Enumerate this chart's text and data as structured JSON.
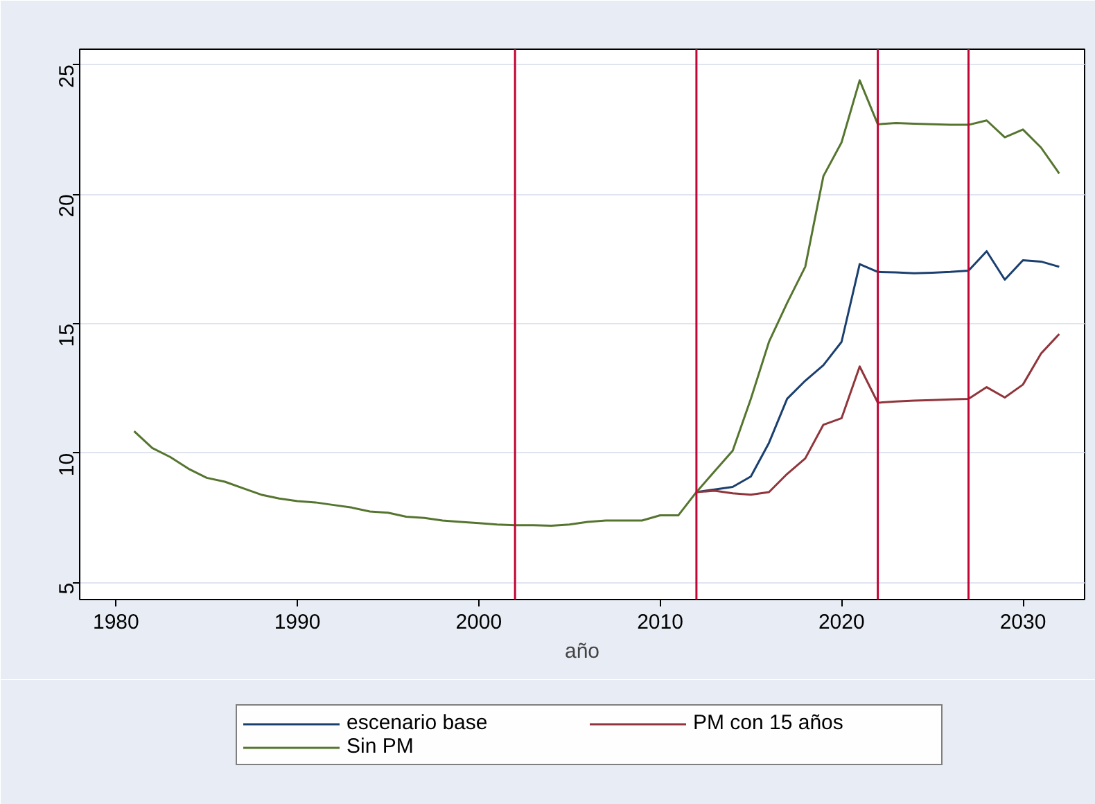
{
  "chart_data": {
    "type": "line",
    "xlabel": "año",
    "x": [
      1981,
      1982,
      1983,
      1984,
      1985,
      1986,
      1987,
      1988,
      1989,
      1990,
      1991,
      1992,
      1993,
      1994,
      1995,
      1996,
      1997,
      1998,
      1999,
      2000,
      2001,
      2002,
      2003,
      2004,
      2005,
      2006,
      2007,
      2008,
      2009,
      2010,
      2011,
      2012,
      2013,
      2014,
      2015,
      2016,
      2017,
      2018,
      2019,
      2020,
      2021,
      2022,
      2023,
      2024,
      2025,
      2026,
      2027,
      2028,
      2029,
      2030,
      2031,
      2032
    ],
    "series": [
      {
        "name": "escenario base",
        "color": "#1a3f6f",
        "values": [
          null,
          null,
          null,
          null,
          null,
          null,
          null,
          null,
          null,
          null,
          null,
          null,
          null,
          null,
          null,
          null,
          null,
          null,
          null,
          null,
          null,
          null,
          null,
          null,
          null,
          null,
          null,
          null,
          null,
          null,
          null,
          8.5,
          8.6,
          8.7,
          9.1,
          10.4,
          12.1,
          12.8,
          13.4,
          14.3,
          17.3,
          17.0,
          16.98,
          16.95,
          16.97,
          17.0,
          17.05,
          17.8,
          16.7,
          17.45,
          17.4,
          17.2
        ]
      },
      {
        "name": "PM con 15 años",
        "color": "#90353b",
        "values": [
          null,
          null,
          null,
          null,
          null,
          null,
          null,
          null,
          null,
          null,
          null,
          null,
          null,
          null,
          null,
          null,
          null,
          null,
          null,
          null,
          null,
          null,
          null,
          null,
          null,
          null,
          null,
          null,
          null,
          null,
          null,
          8.5,
          8.55,
          8.45,
          8.4,
          8.5,
          9.2,
          9.8,
          11.1,
          11.35,
          13.35,
          11.95,
          12.0,
          12.03,
          12.05,
          12.08,
          12.1,
          12.55,
          12.15,
          12.65,
          13.85,
          14.6
        ]
      },
      {
        "name": "Sin PM",
        "color": "#55752f",
        "values": [
          10.85,
          10.2,
          9.85,
          9.4,
          9.05,
          8.9,
          8.65,
          8.4,
          8.25,
          8.15,
          8.1,
          8.0,
          7.9,
          7.75,
          7.7,
          7.55,
          7.5,
          7.4,
          7.35,
          7.3,
          7.25,
          7.22,
          7.22,
          7.2,
          7.25,
          7.35,
          7.4,
          7.4,
          7.4,
          7.6,
          7.6,
          8.5,
          9.3,
          10.1,
          12.1,
          14.3,
          15.8,
          17.2,
          20.7,
          22.0,
          24.4,
          22.7,
          22.75,
          22.72,
          22.7,
          22.68,
          22.68,
          22.85,
          22.2,
          22.5,
          21.8,
          20.8
        ]
      }
    ],
    "xlim": [
      1978,
      2033.4
    ],
    "ylim": [
      4.35,
      25.6
    ],
    "xticks": [
      1980,
      1990,
      2000,
      2010,
      2020,
      2030
    ],
    "yticks": [
      5,
      10,
      15,
      20,
      25
    ],
    "ref_lines": [
      {
        "axis": "x",
        "value": 2002,
        "color": "#c10534"
      },
      {
        "axis": "x",
        "value": 2012,
        "color": "#c10534"
      },
      {
        "axis": "x",
        "value": 2022,
        "color": "#c10534"
      },
      {
        "axis": "x",
        "value": 2027,
        "color": "#c10534"
      }
    ],
    "grid": "y",
    "legend": "bottom",
    "marker": "none",
    "line_style": "solid"
  }
}
